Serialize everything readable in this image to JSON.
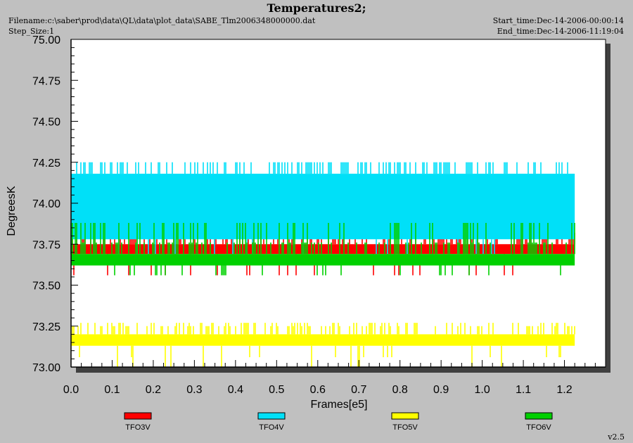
{
  "header": {
    "title": "Temperatures2;",
    "filename": "Filename:c:\\saber\\prod\\data\\QL\\data\\plot_data\\SABE_Tlm2006348000000.dat",
    "step_size": "Step_Size:1",
    "start_time": "Start_time:Dec-14-2006-00:00:14",
    "end_time": "End_time:Dec-14-2006-11:19:04"
  },
  "footer": {
    "version": "v2.5"
  },
  "colors": {
    "background": "#c0c0c0",
    "plot_area": "#ffffff",
    "shadow": "#404040"
  },
  "chart_data": {
    "type": "line",
    "title": "Temperatures2;",
    "xlabel": "Frames[e5]",
    "ylabel": "DegreesK",
    "xlim": [
      0.0,
      1.3
    ],
    "ylim": [
      73.0,
      75.0
    ],
    "x_ticks": [
      "0.0",
      "0.1",
      "0.2",
      "0.3",
      "0.4",
      "0.5",
      "0.6",
      "0.7",
      "0.8",
      "0.9",
      "1.0",
      "1.1",
      "1.2"
    ],
    "y_ticks": [
      "73.00",
      "73.25",
      "73.50",
      "73.75",
      "74.00",
      "74.25",
      "74.50",
      "74.75",
      "75.00"
    ],
    "grid": false,
    "legend_position": "bottom",
    "x_end": 1.225,
    "series": [
      {
        "name": "TFO3V",
        "color": "#ff0000",
        "base": [
          73.69,
          73.75
        ],
        "spikes_up": [
          73.82,
          73.88
        ],
        "spikes_down": [
          73.56
        ]
      },
      {
        "name": "TFO4V",
        "color": "#00e0f8",
        "base": [
          73.78,
          74.18
        ],
        "spikes_up": [
          74.25
        ],
        "spikes_down": [
          73.69
        ]
      },
      {
        "name": "TFO5V",
        "color": "#ffff00",
        "base": [
          73.13,
          73.2
        ],
        "spikes_up": [
          73.25,
          73.27
        ],
        "spikes_down": [
          73.06,
          73.0
        ]
      },
      {
        "name": "TFO6V",
        "color": "#00d000",
        "base": [
          73.62,
          73.69
        ],
        "spikes_up": [
          73.76,
          73.88
        ],
        "spikes_down": [
          73.56
        ]
      }
    ]
  }
}
